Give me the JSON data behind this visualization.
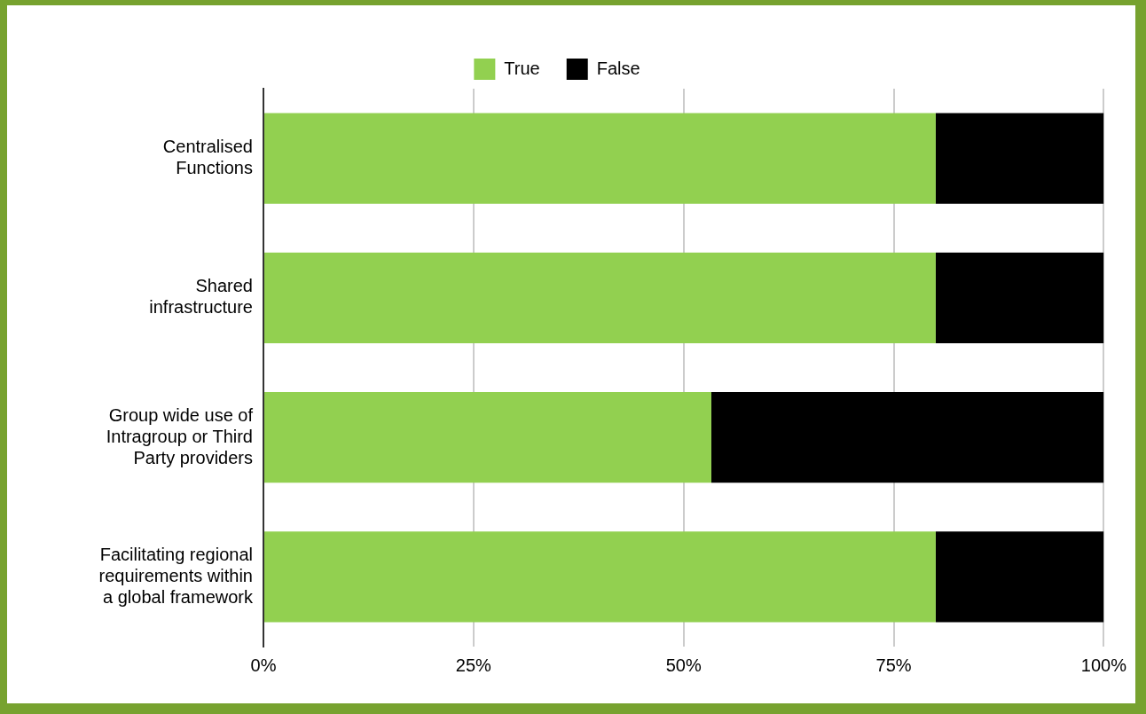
{
  "chart_data": {
    "type": "bar",
    "orientation": "horizontal",
    "stacked": true,
    "categories": [
      "Centralised\nFunctions",
      "Shared\ninfrastructure",
      "Group wide use of\nIntragroup or Third\nParty providers",
      "Facilitating regional\nrequirements within\na global framework"
    ],
    "series": [
      {
        "name": "True",
        "color": "#92d050",
        "values": [
          80,
          80,
          53.3,
          80
        ]
      },
      {
        "name": "False",
        "color": "#000000",
        "values": [
          20,
          20,
          46.7,
          20
        ]
      }
    ],
    "xlim": [
      0,
      100
    ],
    "xticks": [
      {
        "value": 0,
        "label": "0%"
      },
      {
        "value": 25,
        "label": "25%"
      },
      {
        "value": 50,
        "label": "50%"
      },
      {
        "value": 75,
        "label": "75%"
      },
      {
        "value": 100,
        "label": "100%"
      }
    ],
    "grid": "x",
    "legend": "top"
  }
}
